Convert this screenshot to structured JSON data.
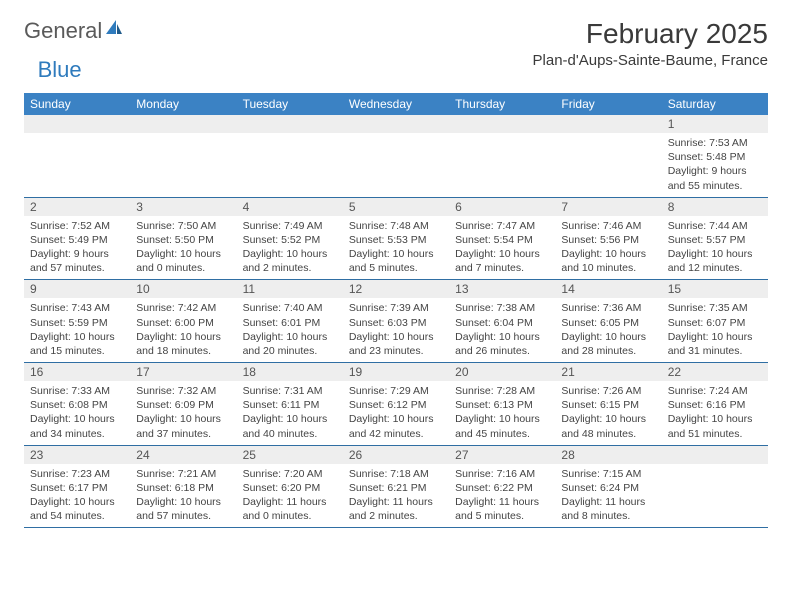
{
  "logo": {
    "text1": "General",
    "text2": "Blue"
  },
  "title": "February 2025",
  "location": "Plan-d'Aups-Sainte-Baume, France",
  "colors": {
    "header_bg": "#3b82c4",
    "header_text": "#ffffff",
    "daynum_bg": "#eeeeee",
    "border": "#2f6ea3",
    "logo_gray": "#5a5a5a",
    "logo_blue": "#2f7bbd"
  },
  "weekdays": [
    "Sunday",
    "Monday",
    "Tuesday",
    "Wednesday",
    "Thursday",
    "Friday",
    "Saturday"
  ],
  "weeks": [
    [
      {
        "n": "",
        "lines": []
      },
      {
        "n": "",
        "lines": []
      },
      {
        "n": "",
        "lines": []
      },
      {
        "n": "",
        "lines": []
      },
      {
        "n": "",
        "lines": []
      },
      {
        "n": "",
        "lines": []
      },
      {
        "n": "1",
        "lines": [
          "Sunrise: 7:53 AM",
          "Sunset: 5:48 PM",
          "Daylight: 9 hours",
          "and 55 minutes."
        ]
      }
    ],
    [
      {
        "n": "2",
        "lines": [
          "Sunrise: 7:52 AM",
          "Sunset: 5:49 PM",
          "Daylight: 9 hours",
          "and 57 minutes."
        ]
      },
      {
        "n": "3",
        "lines": [
          "Sunrise: 7:50 AM",
          "Sunset: 5:50 PM",
          "Daylight: 10 hours",
          "and 0 minutes."
        ]
      },
      {
        "n": "4",
        "lines": [
          "Sunrise: 7:49 AM",
          "Sunset: 5:52 PM",
          "Daylight: 10 hours",
          "and 2 minutes."
        ]
      },
      {
        "n": "5",
        "lines": [
          "Sunrise: 7:48 AM",
          "Sunset: 5:53 PM",
          "Daylight: 10 hours",
          "and 5 minutes."
        ]
      },
      {
        "n": "6",
        "lines": [
          "Sunrise: 7:47 AM",
          "Sunset: 5:54 PM",
          "Daylight: 10 hours",
          "and 7 minutes."
        ]
      },
      {
        "n": "7",
        "lines": [
          "Sunrise: 7:46 AM",
          "Sunset: 5:56 PM",
          "Daylight: 10 hours",
          "and 10 minutes."
        ]
      },
      {
        "n": "8",
        "lines": [
          "Sunrise: 7:44 AM",
          "Sunset: 5:57 PM",
          "Daylight: 10 hours",
          "and 12 minutes."
        ]
      }
    ],
    [
      {
        "n": "9",
        "lines": [
          "Sunrise: 7:43 AM",
          "Sunset: 5:59 PM",
          "Daylight: 10 hours",
          "and 15 minutes."
        ]
      },
      {
        "n": "10",
        "lines": [
          "Sunrise: 7:42 AM",
          "Sunset: 6:00 PM",
          "Daylight: 10 hours",
          "and 18 minutes."
        ]
      },
      {
        "n": "11",
        "lines": [
          "Sunrise: 7:40 AM",
          "Sunset: 6:01 PM",
          "Daylight: 10 hours",
          "and 20 minutes."
        ]
      },
      {
        "n": "12",
        "lines": [
          "Sunrise: 7:39 AM",
          "Sunset: 6:03 PM",
          "Daylight: 10 hours",
          "and 23 minutes."
        ]
      },
      {
        "n": "13",
        "lines": [
          "Sunrise: 7:38 AM",
          "Sunset: 6:04 PM",
          "Daylight: 10 hours",
          "and 26 minutes."
        ]
      },
      {
        "n": "14",
        "lines": [
          "Sunrise: 7:36 AM",
          "Sunset: 6:05 PM",
          "Daylight: 10 hours",
          "and 28 minutes."
        ]
      },
      {
        "n": "15",
        "lines": [
          "Sunrise: 7:35 AM",
          "Sunset: 6:07 PM",
          "Daylight: 10 hours",
          "and 31 minutes."
        ]
      }
    ],
    [
      {
        "n": "16",
        "lines": [
          "Sunrise: 7:33 AM",
          "Sunset: 6:08 PM",
          "Daylight: 10 hours",
          "and 34 minutes."
        ]
      },
      {
        "n": "17",
        "lines": [
          "Sunrise: 7:32 AM",
          "Sunset: 6:09 PM",
          "Daylight: 10 hours",
          "and 37 minutes."
        ]
      },
      {
        "n": "18",
        "lines": [
          "Sunrise: 7:31 AM",
          "Sunset: 6:11 PM",
          "Daylight: 10 hours",
          "and 40 minutes."
        ]
      },
      {
        "n": "19",
        "lines": [
          "Sunrise: 7:29 AM",
          "Sunset: 6:12 PM",
          "Daylight: 10 hours",
          "and 42 minutes."
        ]
      },
      {
        "n": "20",
        "lines": [
          "Sunrise: 7:28 AM",
          "Sunset: 6:13 PM",
          "Daylight: 10 hours",
          "and 45 minutes."
        ]
      },
      {
        "n": "21",
        "lines": [
          "Sunrise: 7:26 AM",
          "Sunset: 6:15 PM",
          "Daylight: 10 hours",
          "and 48 minutes."
        ]
      },
      {
        "n": "22",
        "lines": [
          "Sunrise: 7:24 AM",
          "Sunset: 6:16 PM",
          "Daylight: 10 hours",
          "and 51 minutes."
        ]
      }
    ],
    [
      {
        "n": "23",
        "lines": [
          "Sunrise: 7:23 AM",
          "Sunset: 6:17 PM",
          "Daylight: 10 hours",
          "and 54 minutes."
        ]
      },
      {
        "n": "24",
        "lines": [
          "Sunrise: 7:21 AM",
          "Sunset: 6:18 PM",
          "Daylight: 10 hours",
          "and 57 minutes."
        ]
      },
      {
        "n": "25",
        "lines": [
          "Sunrise: 7:20 AM",
          "Sunset: 6:20 PM",
          "Daylight: 11 hours",
          "and 0 minutes."
        ]
      },
      {
        "n": "26",
        "lines": [
          "Sunrise: 7:18 AM",
          "Sunset: 6:21 PM",
          "Daylight: 11 hours",
          "and 2 minutes."
        ]
      },
      {
        "n": "27",
        "lines": [
          "Sunrise: 7:16 AM",
          "Sunset: 6:22 PM",
          "Daylight: 11 hours",
          "and 5 minutes."
        ]
      },
      {
        "n": "28",
        "lines": [
          "Sunrise: 7:15 AM",
          "Sunset: 6:24 PM",
          "Daylight: 11 hours",
          "and 8 minutes."
        ]
      },
      {
        "n": "",
        "lines": []
      }
    ]
  ]
}
